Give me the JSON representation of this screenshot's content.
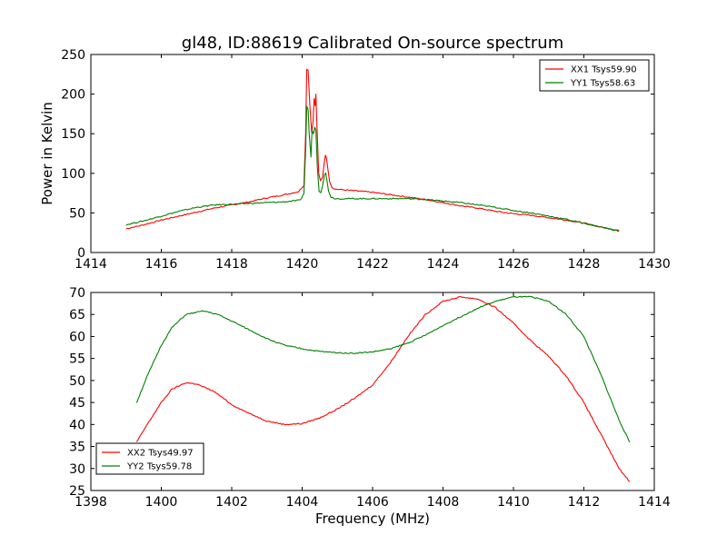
{
  "title": "gl48, ID:88619 Calibrated On-source spectrum",
  "colors": {
    "xx": "#ff0000",
    "yy": "#008000",
    "axes": "#000000",
    "background": "#ffffff"
  },
  "chart_data": [
    {
      "type": "line",
      "ylabel": "Power in Kelvin",
      "xlabel": "",
      "xlim": [
        1414,
        1430
      ],
      "ylim": [
        0,
        250
      ],
      "xticks": [
        1414,
        1416,
        1418,
        1420,
        1422,
        1424,
        1426,
        1428,
        1430
      ],
      "yticks": [
        0,
        50,
        100,
        150,
        200,
        250
      ],
      "legend_position": "top-right",
      "series": [
        {
          "name": "XX1 Tsys59.90",
          "color": "#ff0000",
          "points": [
            [
              1415.0,
              30
            ],
            [
              1415.5,
              35
            ],
            [
              1416.0,
              41
            ],
            [
              1416.5,
              46
            ],
            [
              1417.0,
              51
            ],
            [
              1417.5,
              56
            ],
            [
              1418.0,
              60
            ],
            [
              1418.5,
              64
            ],
            [
              1419.0,
              69
            ],
            [
              1419.5,
              73
            ],
            [
              1419.9,
              77
            ],
            [
              1420.05,
              85
            ],
            [
              1420.1,
              150
            ],
            [
              1420.13,
              232
            ],
            [
              1420.17,
              230
            ],
            [
              1420.22,
              185
            ],
            [
              1420.27,
              152
            ],
            [
              1420.31,
              165
            ],
            [
              1420.34,
              195
            ],
            [
              1420.37,
              185
            ],
            [
              1420.39,
              200
            ],
            [
              1420.42,
              160
            ],
            [
              1420.47,
              100
            ],
            [
              1420.52,
              90
            ],
            [
              1420.58,
              95
            ],
            [
              1420.63,
              115
            ],
            [
              1420.66,
              123
            ],
            [
              1420.69,
              120
            ],
            [
              1420.73,
              105
            ],
            [
              1420.78,
              90
            ],
            [
              1420.85,
              82
            ],
            [
              1420.95,
              80
            ],
            [
              1421.2,
              79
            ],
            [
              1421.5,
              78
            ],
            [
              1422.0,
              76
            ],
            [
              1422.5,
              73
            ],
            [
              1423.0,
              70
            ],
            [
              1423.5,
              67
            ],
            [
              1424.0,
              63
            ],
            [
              1424.5,
              59
            ],
            [
              1425.0,
              56
            ],
            [
              1425.5,
              52
            ],
            [
              1426.0,
              49
            ],
            [
              1426.5,
              47
            ],
            [
              1427.0,
              44
            ],
            [
              1427.5,
              41
            ],
            [
              1428.0,
              37
            ],
            [
              1428.5,
              32
            ],
            [
              1429.0,
              28
            ]
          ]
        },
        {
          "name": "YY1 Tsys58.63",
          "color": "#008000",
          "points": [
            [
              1415.0,
              35
            ],
            [
              1415.5,
              40
            ],
            [
              1416.0,
              46
            ],
            [
              1416.5,
              52
            ],
            [
              1417.0,
              57
            ],
            [
              1417.5,
              60
            ],
            [
              1418.0,
              61
            ],
            [
              1418.5,
              62
            ],
            [
              1419.0,
              63
            ],
            [
              1419.5,
              64
            ],
            [
              1419.95,
              66
            ],
            [
              1420.05,
              75
            ],
            [
              1420.1,
              130
            ],
            [
              1420.13,
              185
            ],
            [
              1420.17,
              180
            ],
            [
              1420.2,
              150
            ],
            [
              1420.25,
              120
            ],
            [
              1420.28,
              155
            ],
            [
              1420.32,
              150
            ],
            [
              1420.36,
              158
            ],
            [
              1420.39,
              155
            ],
            [
              1420.43,
              110
            ],
            [
              1420.48,
              78
            ],
            [
              1420.53,
              76
            ],
            [
              1420.58,
              85
            ],
            [
              1420.63,
              98
            ],
            [
              1420.67,
              100
            ],
            [
              1420.7,
              92
            ],
            [
              1420.75,
              78
            ],
            [
              1420.82,
              70
            ],
            [
              1420.95,
              68
            ],
            [
              1421.2,
              68
            ],
            [
              1421.5,
              68
            ],
            [
              1422.0,
              68
            ],
            [
              1422.5,
              68
            ],
            [
              1423.0,
              68
            ],
            [
              1423.5,
              67
            ],
            [
              1424.0,
              65
            ],
            [
              1424.5,
              63
            ],
            [
              1425.0,
              60
            ],
            [
              1425.5,
              57
            ],
            [
              1426.0,
              53
            ],
            [
              1426.5,
              50
            ],
            [
              1427.0,
              46
            ],
            [
              1427.5,
              42
            ],
            [
              1428.0,
              37
            ],
            [
              1428.5,
              32
            ],
            [
              1429.0,
              27
            ]
          ]
        }
      ]
    },
    {
      "type": "line",
      "ylabel": "",
      "xlabel": "Frequency (MHz)",
      "xlim": [
        1398,
        1414
      ],
      "ylim": [
        25,
        70
      ],
      "xticks": [
        1398,
        1400,
        1402,
        1404,
        1406,
        1408,
        1410,
        1412,
        1414
      ],
      "yticks": [
        25,
        30,
        35,
        40,
        45,
        50,
        55,
        60,
        65,
        70
      ],
      "legend_position": "bottom-left",
      "series": [
        {
          "name": "XX2 Tsys49.97",
          "color": "#ff0000",
          "points": [
            [
              1399.3,
              36
            ],
            [
              1399.6,
              40
            ],
            [
              1400.0,
              45
            ],
            [
              1400.3,
              48
            ],
            [
              1400.7,
              49.5
            ],
            [
              1401.0,
              49.2
            ],
            [
              1401.5,
              47.5
            ],
            [
              1402.0,
              44.5
            ],
            [
              1402.5,
              42.5
            ],
            [
              1403.0,
              40.8
            ],
            [
              1403.5,
              40
            ],
            [
              1404.0,
              40.2
            ],
            [
              1404.5,
              41.5
            ],
            [
              1405.0,
              43.5
            ],
            [
              1405.5,
              46
            ],
            [
              1406.0,
              49
            ],
            [
              1406.5,
              54
            ],
            [
              1407.0,
              60
            ],
            [
              1407.5,
              65
            ],
            [
              1408.0,
              68
            ],
            [
              1408.5,
              69
            ],
            [
              1409.0,
              68.5
            ],
            [
              1409.5,
              66.5
            ],
            [
              1410.0,
              63
            ],
            [
              1410.5,
              59
            ],
            [
              1411.0,
              55.5
            ],
            [
              1411.5,
              51
            ],
            [
              1412.0,
              45
            ],
            [
              1412.5,
              37.5
            ],
            [
              1413.0,
              30
            ],
            [
              1413.3,
              27
            ]
          ]
        },
        {
          "name": "YY2 Tsys59.78",
          "color": "#008000",
          "points": [
            [
              1399.3,
              45
            ],
            [
              1399.6,
              51
            ],
            [
              1400.0,
              58
            ],
            [
              1400.3,
              62
            ],
            [
              1400.7,
              65
            ],
            [
              1401.2,
              65.8
            ],
            [
              1401.6,
              65
            ],
            [
              1402.0,
              63.5
            ],
            [
              1402.5,
              61.5
            ],
            [
              1403.0,
              59.5
            ],
            [
              1403.5,
              58
            ],
            [
              1404.0,
              57.2
            ],
            [
              1404.5,
              56.6
            ],
            [
              1405.0,
              56.3
            ],
            [
              1405.5,
              56.2
            ],
            [
              1406.0,
              56.5
            ],
            [
              1406.5,
              57.2
            ],
            [
              1407.0,
              58.5
            ],
            [
              1407.5,
              60.3
            ],
            [
              1408.0,
              62.5
            ],
            [
              1408.5,
              64.5
            ],
            [
              1409.0,
              66.5
            ],
            [
              1409.5,
              68
            ],
            [
              1410.0,
              69
            ],
            [
              1410.5,
              69
            ],
            [
              1411.0,
              68
            ],
            [
              1411.5,
              65
            ],
            [
              1412.0,
              60
            ],
            [
              1412.5,
              51
            ],
            [
              1413.0,
              41
            ],
            [
              1413.3,
              36
            ]
          ]
        }
      ]
    }
  ]
}
